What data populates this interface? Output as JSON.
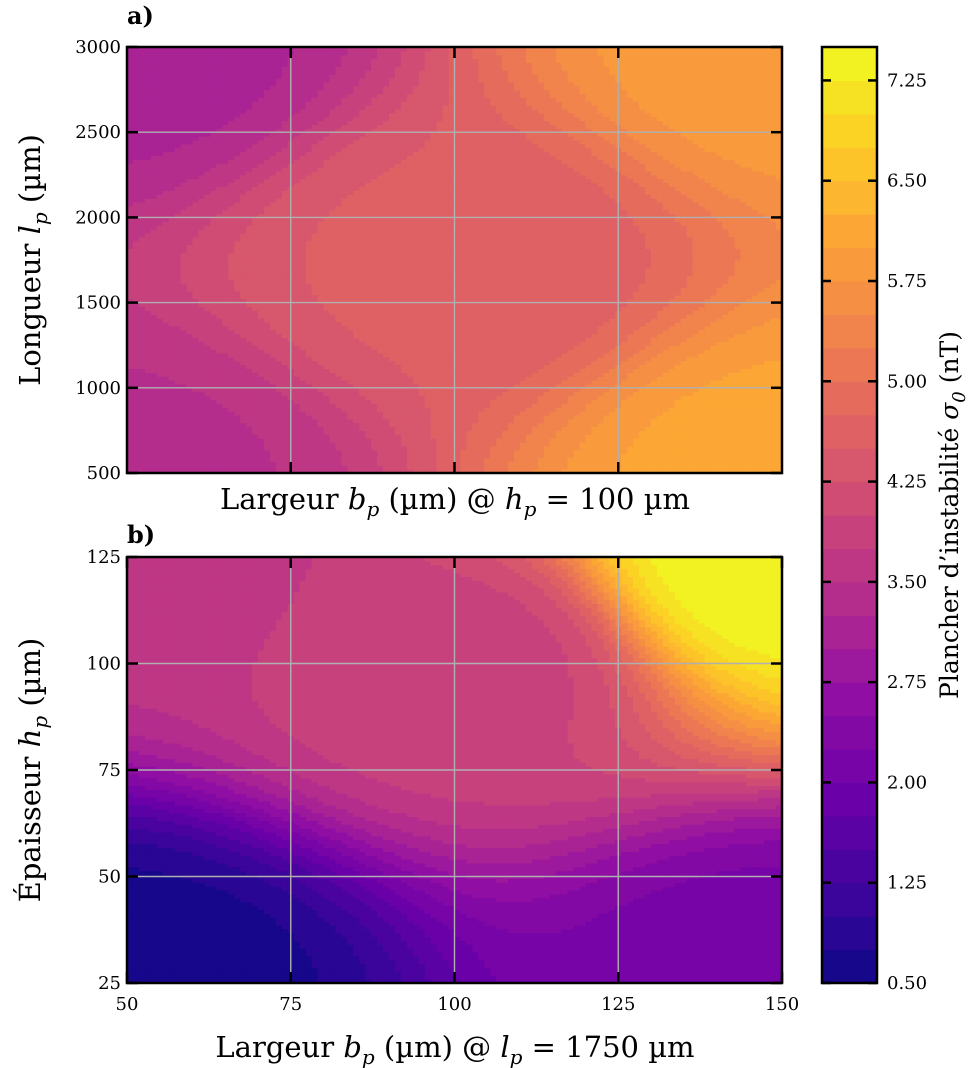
{
  "chart_data": {
    "type": "heatmap",
    "colormap": "plasma",
    "panels": [
      {
        "label": "a)",
        "xlabel": {
          "pre": "Largeur ",
          "sym": "b",
          "sub": "p",
          "post": " (µm) @ ",
          "sym2": "h",
          "sub2": "p",
          "post2": " = 100 µm"
        },
        "ylabel": {
          "pre": "Longueur ",
          "sym": "l",
          "sub": "p",
          "post": " (µm)"
        },
        "xlim": [
          50,
          150
        ],
        "ylim": [
          500,
          3000
        ],
        "xticks": [
          75,
          100,
          125
        ],
        "xtick_labels_visible": false,
        "yticks": [
          500,
          1000,
          1500,
          2000,
          2500,
          3000
        ],
        "ytick_labels": [
          "500",
          "1000",
          "1500",
          "2000",
          "2500",
          "3000"
        ],
        "grid": true,
        "z_samples": [
          {
            "x": 50,
            "y": 3000,
            "z": 3.15
          },
          {
            "x": 50,
            "y": 500,
            "z": 3.45
          },
          {
            "x": 100,
            "y": 1750,
            "z": 4.55
          },
          {
            "x": 150,
            "y": 3000,
            "z": 5.9
          },
          {
            "x": 150,
            "y": 500,
            "z": 6.1
          }
        ]
      },
      {
        "label": "b)",
        "xlabel": {
          "pre": "Largeur ",
          "sym": "b",
          "sub": "p",
          "post": " (µm) @ ",
          "sym2": "l",
          "sub2": "p",
          "post2": " = 1750 µm"
        },
        "ylabel": {
          "pre": "Épaisseur ",
          "sym": "h",
          "sub": "p",
          "post": " (µm)"
        },
        "xlim": [
          50,
          150
        ],
        "ylim": [
          25,
          125
        ],
        "xticks": [
          50,
          75,
          100,
          125,
          150
        ],
        "xtick_labels": [
          "50",
          "75",
          "100",
          "125",
          "150"
        ],
        "xtick_labels_visible": true,
        "yticks": [
          25,
          50,
          75,
          100,
          125
        ],
        "ytick_labels": [
          "25",
          "50",
          "75",
          "100",
          "125"
        ],
        "grid": true,
        "z_samples": [
          {
            "x": 50,
            "y": 25,
            "z": 0.6
          },
          {
            "x": 150,
            "y": 25,
            "z": 2.1
          },
          {
            "x": 50,
            "y": 125,
            "z": 3.6
          },
          {
            "x": 100,
            "y": 100,
            "z": 3.9
          },
          {
            "x": 150,
            "y": 125,
            "z": 7.5
          }
        ]
      }
    ],
    "colorbar": {
      "label": {
        "pre": "Plancher d’instabilité ",
        "sym": "σ",
        "sub": "0",
        "post": " (nT)"
      },
      "range": [
        0.5,
        7.5
      ],
      "levels": 28,
      "ticks": [
        0.5,
        1.25,
        2.0,
        2.75,
        3.5,
        4.25,
        5.0,
        5.75,
        6.5,
        7.25
      ],
      "tick_labels": [
        "0.50",
        "1.25",
        "2.00",
        "2.75",
        "3.50",
        "4.25",
        "5.00",
        "5.75",
        "6.50",
        "7.25"
      ]
    }
  }
}
